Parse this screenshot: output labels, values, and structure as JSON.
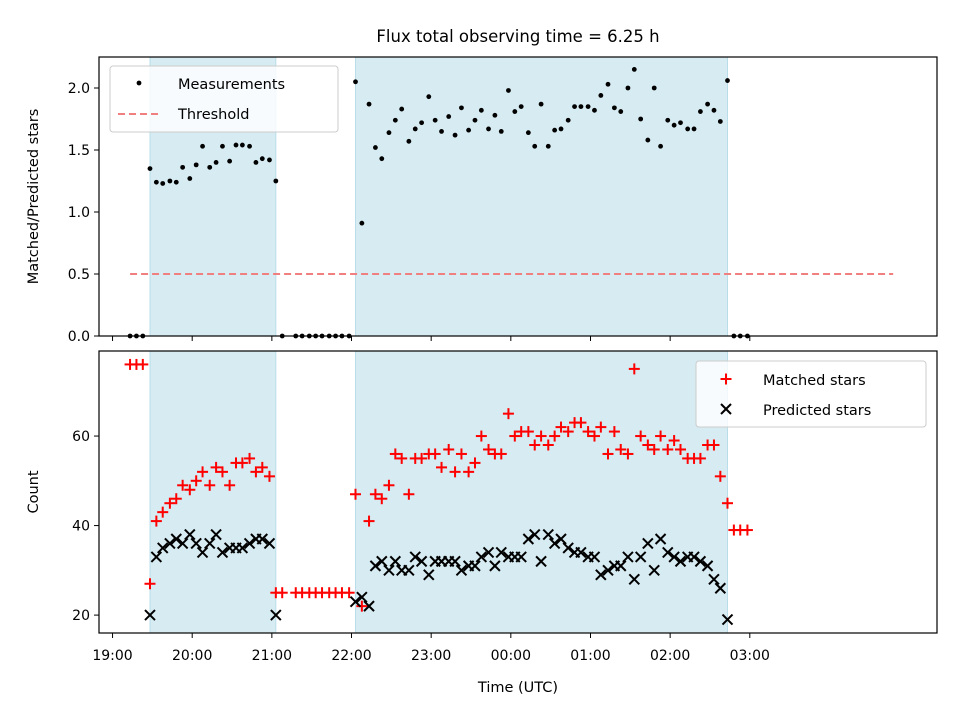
{
  "chart_data": {
    "title": "Flux total observing time = 6.25 h",
    "xlabel": "Time (UTC)",
    "x_ticks": [
      "19:00",
      "20:00",
      "21:00",
      "22:00",
      "23:00",
      "00:00",
      "01:00",
      "02:00",
      "03:00"
    ],
    "shaded_intervals": [
      [
        19.47,
        21.05
      ],
      [
        22.05,
        26.72
      ]
    ],
    "shade_color": "#add8e6",
    "panels": [
      {
        "type": "scatter",
        "ylabel": "Matched/Predicted stars",
        "ylim": [
          0,
          2.25
        ],
        "y_ticks": [
          0.0,
          0.5,
          1.0,
          1.5,
          2.0
        ],
        "y_tick_labels": [
          "0.0",
          "0.5",
          "1.0",
          "1.5",
          "2.0"
        ],
        "legend": {
          "position": "top-left",
          "items": [
            "Measurements",
            "Threshold"
          ]
        },
        "threshold": {
          "name": "Threshold",
          "value": 0.5,
          "x_range": [
            19.22,
            28.8
          ],
          "color": "#f08080"
        },
        "series": [
          {
            "name": "Measurements",
            "color": "#000000",
            "x": [
              19.22,
              19.3,
              19.38,
              19.47,
              19.55,
              19.63,
              19.72,
              19.8,
              19.88,
              19.97,
              20.05,
              20.13,
              20.22,
              20.3,
              20.38,
              20.47,
              20.55,
              20.63,
              20.72,
              20.8,
              20.88,
              20.97,
              21.05,
              21.13,
              21.3,
              21.38,
              21.47,
              21.55,
              21.63,
              21.72,
              21.8,
              21.88,
              21.97,
              22.05,
              22.13,
              22.22,
              22.3,
              22.38,
              22.47,
              22.55,
              22.63,
              22.72,
              22.8,
              22.88,
              22.97,
              23.05,
              23.13,
              23.22,
              23.3,
              23.38,
              23.47,
              23.55,
              23.63,
              23.72,
              23.8,
              23.88,
              23.97,
              24.05,
              24.13,
              24.22,
              24.3,
              24.38,
              24.47,
              24.55,
              24.63,
              24.72,
              24.8,
              24.88,
              24.97,
              25.05,
              25.13,
              25.22,
              25.3,
              25.38,
              25.47,
              25.55,
              25.63,
              25.72,
              25.8,
              25.88,
              25.97,
              26.05,
              26.13,
              26.22,
              26.3,
              26.38,
              26.47,
              26.55,
              26.63,
              26.72,
              26.8,
              26.88,
              26.97
            ],
            "y": [
              0,
              0,
              0,
              1.35,
              1.24,
              1.23,
              1.25,
              1.24,
              1.36,
              1.27,
              1.38,
              1.53,
              1.36,
              1.4,
              1.53,
              1.41,
              1.54,
              1.54,
              1.53,
              1.4,
              1.43,
              1.42,
              1.25,
              0,
              0,
              0,
              0,
              0,
              0,
              0,
              0,
              0,
              0,
              2.05,
              0.91,
              1.87,
              1.52,
              1.43,
              1.64,
              1.74,
              1.83,
              1.57,
              1.67,
              1.72,
              1.93,
              1.74,
              1.65,
              1.77,
              1.62,
              1.84,
              1.66,
              1.74,
              1.82,
              1.67,
              1.78,
              1.65,
              1.98,
              1.81,
              1.85,
              1.64,
              1.53,
              1.87,
              1.53,
              1.66,
              1.67,
              1.74,
              1.85,
              1.85,
              1.85,
              1.82,
              1.94,
              2.03,
              1.84,
              1.81,
              2.0,
              2.15,
              1.75,
              1.58,
              2.0,
              1.53,
              1.74,
              1.7,
              1.72,
              1.67,
              1.67,
              1.81,
              1.87,
              1.82,
              1.73,
              2.06,
              0,
              0,
              0
            ]
          }
        ]
      },
      {
        "type": "scatter",
        "ylabel": "Count",
        "ylim": [
          16,
          79
        ],
        "y_ticks": [
          20,
          40,
          60
        ],
        "y_tick_labels": [
          "20",
          "40",
          "60"
        ],
        "legend": {
          "position": "top-right",
          "items": [
            "Matched stars",
            "Predicted stars"
          ]
        },
        "series": [
          {
            "name": "Matched stars",
            "marker": "plus",
            "color": "#ff0000",
            "x": [
              19.22,
              19.3,
              19.38,
              19.47,
              19.55,
              19.63,
              19.72,
              19.8,
              19.88,
              19.97,
              20.05,
              20.13,
              20.22,
              20.3,
              20.38,
              20.47,
              20.55,
              20.63,
              20.72,
              20.8,
              20.88,
              20.97,
              21.05,
              21.13,
              21.3,
              21.38,
              21.47,
              21.55,
              21.63,
              21.72,
              21.8,
              21.88,
              21.97,
              22.05,
              22.13,
              22.22,
              22.3,
              22.38,
              22.47,
              22.55,
              22.63,
              22.72,
              22.8,
              22.88,
              22.97,
              23.05,
              23.13,
              23.22,
              23.3,
              23.38,
              23.47,
              23.55,
              23.63,
              23.72,
              23.8,
              23.88,
              23.97,
              24.05,
              24.13,
              24.22,
              24.3,
              24.38,
              24.47,
              24.55,
              24.63,
              24.72,
              24.8,
              24.88,
              24.97,
              25.05,
              25.13,
              25.22,
              25.3,
              25.38,
              25.47,
              25.55,
              25.63,
              25.72,
              25.8,
              25.88,
              25.97,
              26.05,
              26.13,
              26.22,
              26.3,
              26.38,
              26.47,
              26.55,
              26.63,
              26.72,
              26.8,
              26.88,
              26.97
            ],
            "y": [
              76,
              76,
              76,
              27,
              41,
              43,
              45,
              46,
              49,
              48,
              50,
              52,
              49,
              53,
              52,
              49,
              54,
              54,
              55,
              52,
              53,
              51,
              25,
              25,
              25,
              25,
              25,
              25,
              25,
              25,
              25,
              25,
              25,
              47,
              22,
              41,
              47,
              46,
              49,
              56,
              55,
              47,
              55,
              55,
              56,
              56,
              53,
              57,
              52,
              56,
              52,
              54,
              60,
              57,
              56,
              56,
              65,
              60,
              61,
              61,
              58,
              60,
              58,
              60,
              62,
              61,
              63,
              63,
              61,
              60,
              62,
              56,
              61,
              57,
              56,
              75,
              60,
              58,
              57,
              60,
              57,
              59,
              57,
              55,
              55,
              55,
              58,
              58,
              51,
              45,
              39,
              39,
              39
            ]
          },
          {
            "name": "Predicted stars",
            "marker": "x",
            "color": "#000000",
            "x": [
              19.47,
              19.55,
              19.63,
              19.72,
              19.8,
              19.88,
              19.97,
              20.05,
              20.13,
              20.22,
              20.3,
              20.38,
              20.47,
              20.55,
              20.63,
              20.72,
              20.8,
              20.88,
              20.97,
              21.05,
              22.05,
              22.13,
              22.22,
              22.3,
              22.38,
              22.47,
              22.55,
              22.63,
              22.72,
              22.8,
              22.88,
              22.97,
              23.05,
              23.13,
              23.22,
              23.3,
              23.38,
              23.47,
              23.55,
              23.63,
              23.72,
              23.8,
              23.88,
              23.97,
              24.05,
              24.13,
              24.22,
              24.3,
              24.38,
              24.47,
              24.55,
              24.63,
              24.72,
              24.8,
              24.88,
              24.97,
              25.05,
              25.13,
              25.22,
              25.3,
              25.38,
              25.47,
              25.55,
              25.63,
              25.72,
              25.8,
              25.88,
              25.97,
              26.05,
              26.13,
              26.22,
              26.3,
              26.38,
              26.47,
              26.55,
              26.63,
              26.72
            ],
            "y": [
              20,
              33,
              35,
              36,
              37,
              36,
              38,
              36,
              34,
              36,
              38,
              34,
              35,
              35,
              35,
              36,
              37,
              37,
              36,
              20,
              23,
              24,
              22,
              31,
              32,
              30,
              32,
              30,
              30,
              33,
              32,
              29,
              32,
              32,
              32,
              32,
              30,
              31,
              31,
              33,
              34,
              31,
              34,
              33,
              33,
              33,
              37,
              38,
              32,
              38,
              36,
              37,
              35,
              34,
              34,
              33,
              33,
              29,
              30,
              31,
              31,
              33,
              28,
              33,
              36,
              30,
              37,
              34,
              33,
              32,
              33,
              33,
              32,
              31,
              28,
              26,
              19
            ]
          }
        ]
      }
    ]
  }
}
